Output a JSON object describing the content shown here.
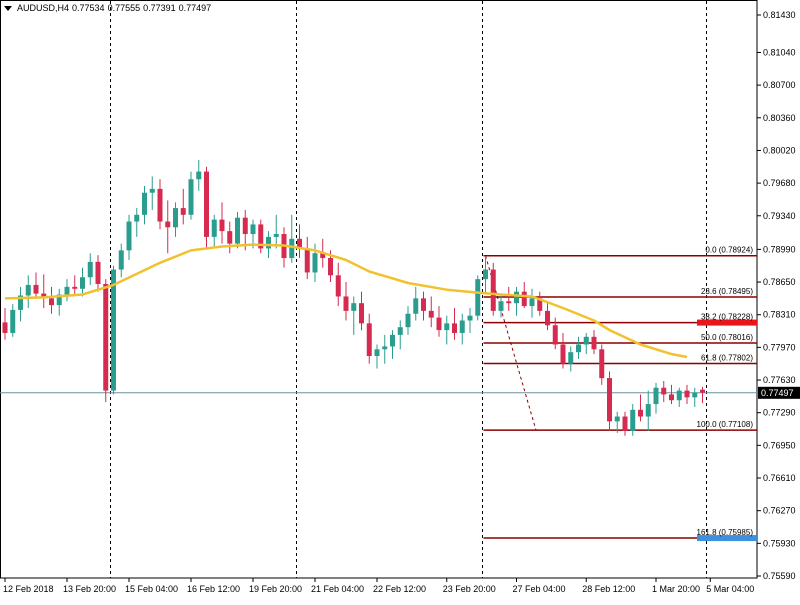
{
  "header": {
    "symbol": "AUDUSD,H4",
    "open": "0.77534",
    "high": "0.77555",
    "low": "0.77391",
    "close": "0.77497"
  },
  "colors": {
    "bull": "#2a9d8f",
    "bear": "#d62a50",
    "ma": "#f2c12e",
    "fib": "#8b0000",
    "bid_line": "#6e8fa0",
    "bid_tag": "#000000",
    "grid_sep": "#000000",
    "red_tag": "#e8151b",
    "blue_tag": "#3d8fe0"
  },
  "chart_data": {
    "type": "candlestick",
    "symbol": "AUDUSD",
    "timeframe": "H4",
    "ylim": [
      0.7559,
      0.8143
    ],
    "y_ticks": [
      "0.81430",
      "0.81040",
      "0.80700",
      "0.80360",
      "0.80020",
      "0.79680",
      "0.79340",
      "0.78990",
      "0.78650",
      "0.78310",
      "0.77970",
      "0.77630",
      "0.77290",
      "0.76950",
      "0.76610",
      "0.76270",
      "0.75930",
      "0.75590"
    ],
    "x_ticks": [
      "12 Feb 2018",
      "13 Feb 20:00",
      "15 Feb 04:00",
      "16 Feb 12:00",
      "19 Feb 20:00",
      "21 Feb 04:00",
      "22 Feb 12:00",
      "23 Feb 20:00",
      "27 Feb 04:00",
      "28 Feb 12:00",
      "1 Mar 20:00",
      "5 Mar 04:00"
    ],
    "current_price": "0.77497",
    "candles": [
      [
        0.7823,
        0.7838,
        0.7805,
        0.7812
      ],
      [
        0.7812,
        0.7842,
        0.7808,
        0.7836
      ],
      [
        0.7836,
        0.786,
        0.7824,
        0.7851
      ],
      [
        0.7851,
        0.7872,
        0.7838,
        0.7862
      ],
      [
        0.7862,
        0.7875,
        0.785,
        0.7853
      ],
      [
        0.7853,
        0.7873,
        0.7838,
        0.7848
      ],
      [
        0.7848,
        0.786,
        0.7832,
        0.7841
      ],
      [
        0.7841,
        0.7858,
        0.783,
        0.7852
      ],
      [
        0.7852,
        0.7868,
        0.7845,
        0.786
      ],
      [
        0.786,
        0.7872,
        0.785,
        0.7858
      ],
      [
        0.7858,
        0.788,
        0.785,
        0.787
      ],
      [
        0.787,
        0.7895,
        0.7862,
        0.7886
      ],
      [
        0.7886,
        0.7893,
        0.7855,
        0.7863
      ],
      [
        0.7863,
        0.7868,
        0.774,
        0.7752
      ],
      [
        0.7752,
        0.7882,
        0.7748,
        0.7878
      ],
      [
        0.7878,
        0.7905,
        0.787,
        0.7898
      ],
      [
        0.7898,
        0.7935,
        0.7888,
        0.7928
      ],
      [
        0.7928,
        0.7942,
        0.7912,
        0.7935
      ],
      [
        0.7935,
        0.7965,
        0.7925,
        0.7958
      ],
      [
        0.7958,
        0.7975,
        0.794,
        0.7962
      ],
      [
        0.7962,
        0.7972,
        0.792,
        0.7928
      ],
      [
        0.7928,
        0.795,
        0.7895,
        0.7922
      ],
      [
        0.7922,
        0.7948,
        0.7912,
        0.7942
      ],
      [
        0.7942,
        0.7962,
        0.7925,
        0.7935
      ],
      [
        0.7935,
        0.798,
        0.793,
        0.7972
      ],
      [
        0.7972,
        0.7992,
        0.796,
        0.798
      ],
      [
        0.798,
        0.7985,
        0.79,
        0.7912
      ],
      [
        0.7912,
        0.7935,
        0.79,
        0.793
      ],
      [
        0.793,
        0.7948,
        0.7905,
        0.7918
      ],
      [
        0.7918,
        0.7928,
        0.7895,
        0.7905
      ],
      [
        0.7905,
        0.7938,
        0.79,
        0.7932
      ],
      [
        0.7932,
        0.794,
        0.7898,
        0.7915
      ],
      [
        0.7915,
        0.793,
        0.79,
        0.7925
      ],
      [
        0.7925,
        0.793,
        0.7895,
        0.79
      ],
      [
        0.79,
        0.7918,
        0.789,
        0.7912
      ],
      [
        0.7912,
        0.7935,
        0.79,
        0.7915
      ],
      [
        0.7915,
        0.7922,
        0.788,
        0.789
      ],
      [
        0.789,
        0.7935,
        0.7885,
        0.791
      ],
      [
        0.791,
        0.7925,
        0.789,
        0.79
      ],
      [
        0.79,
        0.7912,
        0.7868,
        0.7875
      ],
      [
        0.7875,
        0.7905,
        0.7865,
        0.7895
      ],
      [
        0.7895,
        0.791,
        0.788,
        0.789
      ],
      [
        0.789,
        0.7898,
        0.7865,
        0.7872
      ],
      [
        0.7872,
        0.7885,
        0.784,
        0.785
      ],
      [
        0.785,
        0.7865,
        0.7825,
        0.7835
      ],
      [
        0.7835,
        0.785,
        0.781,
        0.7843
      ],
      [
        0.7843,
        0.7855,
        0.7815,
        0.7822
      ],
      [
        0.7822,
        0.7832,
        0.778,
        0.7788
      ],
      [
        0.7788,
        0.78,
        0.7775,
        0.7795
      ],
      [
        0.7795,
        0.781,
        0.778,
        0.7798
      ],
      [
        0.7798,
        0.7815,
        0.7785,
        0.781
      ],
      [
        0.781,
        0.7825,
        0.7795,
        0.7818
      ],
      [
        0.7818,
        0.784,
        0.781,
        0.7832
      ],
      [
        0.7832,
        0.786,
        0.7825,
        0.7848
      ],
      [
        0.7848,
        0.7855,
        0.7825,
        0.7835
      ],
      [
        0.7835,
        0.785,
        0.7818,
        0.7828
      ],
      [
        0.7828,
        0.784,
        0.7808,
        0.7815
      ],
      [
        0.7815,
        0.783,
        0.78,
        0.7822
      ],
      [
        0.7822,
        0.7838,
        0.7805,
        0.7812
      ],
      [
        0.7812,
        0.7832,
        0.78,
        0.7825
      ],
      [
        0.7825,
        0.7838,
        0.7812,
        0.783
      ],
      [
        0.783,
        0.7872,
        0.7825,
        0.7868
      ],
      [
        0.7868,
        0.7892,
        0.7852,
        0.7878
      ],
      [
        0.7878,
        0.7885,
        0.783,
        0.7835
      ],
      [
        0.7835,
        0.7852,
        0.7828,
        0.7845
      ],
      [
        0.7845,
        0.786,
        0.7835,
        0.7843
      ],
      [
        0.7843,
        0.786,
        0.783,
        0.7855
      ],
      [
        0.7855,
        0.7865,
        0.7838,
        0.784
      ],
      [
        0.784,
        0.7858,
        0.7828,
        0.7848
      ],
      [
        0.7848,
        0.7855,
        0.783,
        0.7835
      ],
      [
        0.7835,
        0.7845,
        0.7815,
        0.782
      ],
      [
        0.782,
        0.7828,
        0.7795,
        0.78
      ],
      [
        0.78,
        0.7812,
        0.7775,
        0.778
      ],
      [
        0.778,
        0.7798,
        0.7772,
        0.7792
      ],
      [
        0.7792,
        0.7808,
        0.7785,
        0.78
      ],
      [
        0.78,
        0.7812,
        0.779,
        0.7808
      ],
      [
        0.7808,
        0.7815,
        0.779,
        0.7795
      ],
      [
        0.7795,
        0.78,
        0.7758,
        0.7765
      ],
      [
        0.7765,
        0.7772,
        0.771,
        0.772
      ],
      [
        0.772,
        0.773,
        0.7708,
        0.7725
      ],
      [
        0.7725,
        0.773,
        0.7705,
        0.771
      ],
      [
        0.771,
        0.7738,
        0.7705,
        0.7732
      ],
      [
        0.7732,
        0.7748,
        0.772,
        0.7725
      ],
      [
        0.7725,
        0.7752,
        0.771,
        0.7738
      ],
      [
        0.7738,
        0.776,
        0.7728,
        0.7755
      ],
      [
        0.7755,
        0.7762,
        0.774,
        0.7748
      ],
      [
        0.7748,
        0.7758,
        0.7738,
        0.7742
      ],
      [
        0.7742,
        0.7755,
        0.7735,
        0.7752
      ],
      [
        0.7752,
        0.7758,
        0.7738,
        0.7745
      ],
      [
        0.7745,
        0.7755,
        0.7735,
        0.775
      ],
      [
        0.7753,
        0.7756,
        0.7739,
        0.775
      ]
    ],
    "moving_average": [
      [
        0,
        0.7848
      ],
      [
        5,
        0.7849
      ],
      [
        10,
        0.7852
      ],
      [
        14,
        0.7862
      ],
      [
        20,
        0.7885
      ],
      [
        24,
        0.7898
      ],
      [
        28,
        0.7902
      ],
      [
        32,
        0.7904
      ],
      [
        36,
        0.7903
      ],
      [
        40,
        0.7898
      ],
      [
        44,
        0.7888
      ],
      [
        47,
        0.7876
      ],
      [
        52,
        0.7864
      ],
      [
        57,
        0.7857
      ],
      [
        61,
        0.7854
      ],
      [
        64,
        0.7852
      ],
      [
        68,
        0.785
      ],
      [
        72,
        0.7838
      ],
      [
        76,
        0.7825
      ],
      [
        78,
        0.7815
      ],
      [
        82,
        0.78
      ],
      [
        86,
        0.779
      ],
      [
        88,
        0.7787
      ]
    ],
    "fibonacci": {
      "start_index": 62,
      "anchor": {
        "from_index": 62,
        "to_index": 68
      },
      "levels": [
        {
          "label": "0.0 (0.78924)",
          "price": 0.78924,
          "color": "#8b0000"
        },
        {
          "label": "23.6 (0.78495)",
          "price": 0.78495,
          "color": "#8b0000"
        },
        {
          "label": "38.2 (0.78228)",
          "price": 0.78228,
          "color": "#8b0000"
        },
        {
          "label": "50.0 (0.78016)",
          "price": 0.78016,
          "color": "#8b0000"
        },
        {
          "label": "61.8 (0.77802)",
          "price": 0.77802,
          "color": "#8b0000"
        },
        {
          "label": "100.0 (0.77108)",
          "price": 0.77108,
          "color": "#8b0000"
        },
        {
          "label": "161.8 (0.75985)",
          "price": 0.75985,
          "color": "#8b0000"
        }
      ],
      "highlight_tags": [
        {
          "level_index": 2,
          "color": "#e8151b"
        },
        {
          "level_index": 6,
          "color": "#3d8fe0"
        }
      ]
    },
    "period_separators_index": [
      13.5,
      37.5,
      61.5,
      90.5
    ]
  }
}
